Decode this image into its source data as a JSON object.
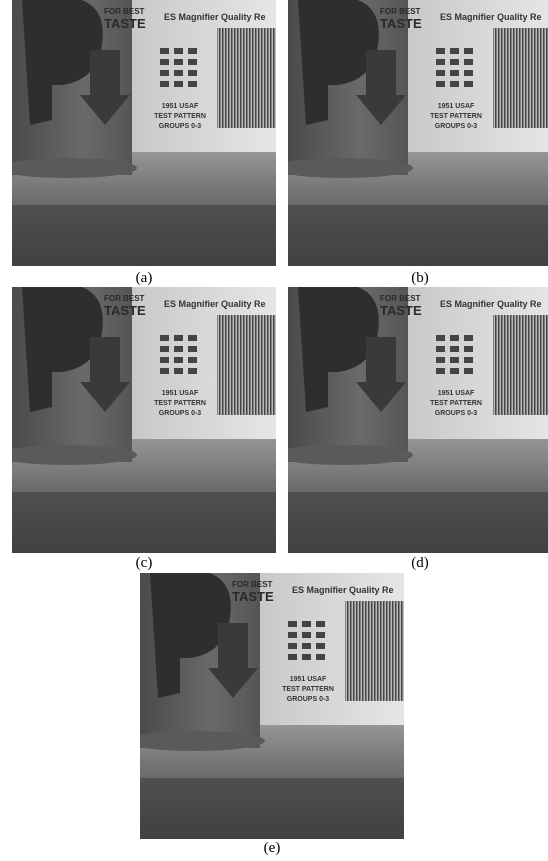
{
  "figure": {
    "photo_text": {
      "card_title": "ES Magnifier Quality Re",
      "pattern_lines": [
        "1951 USAF",
        "TEST PATTERN",
        "GROUPS 0-3"
      ],
      "can_text": [
        "FOR BEST",
        "TASTE"
      ]
    },
    "panels": [
      {
        "label": "(a)"
      },
      {
        "label": "(b)"
      },
      {
        "label": "(c)"
      },
      {
        "label": "(d)"
      },
      {
        "label": "(e)"
      }
    ]
  }
}
